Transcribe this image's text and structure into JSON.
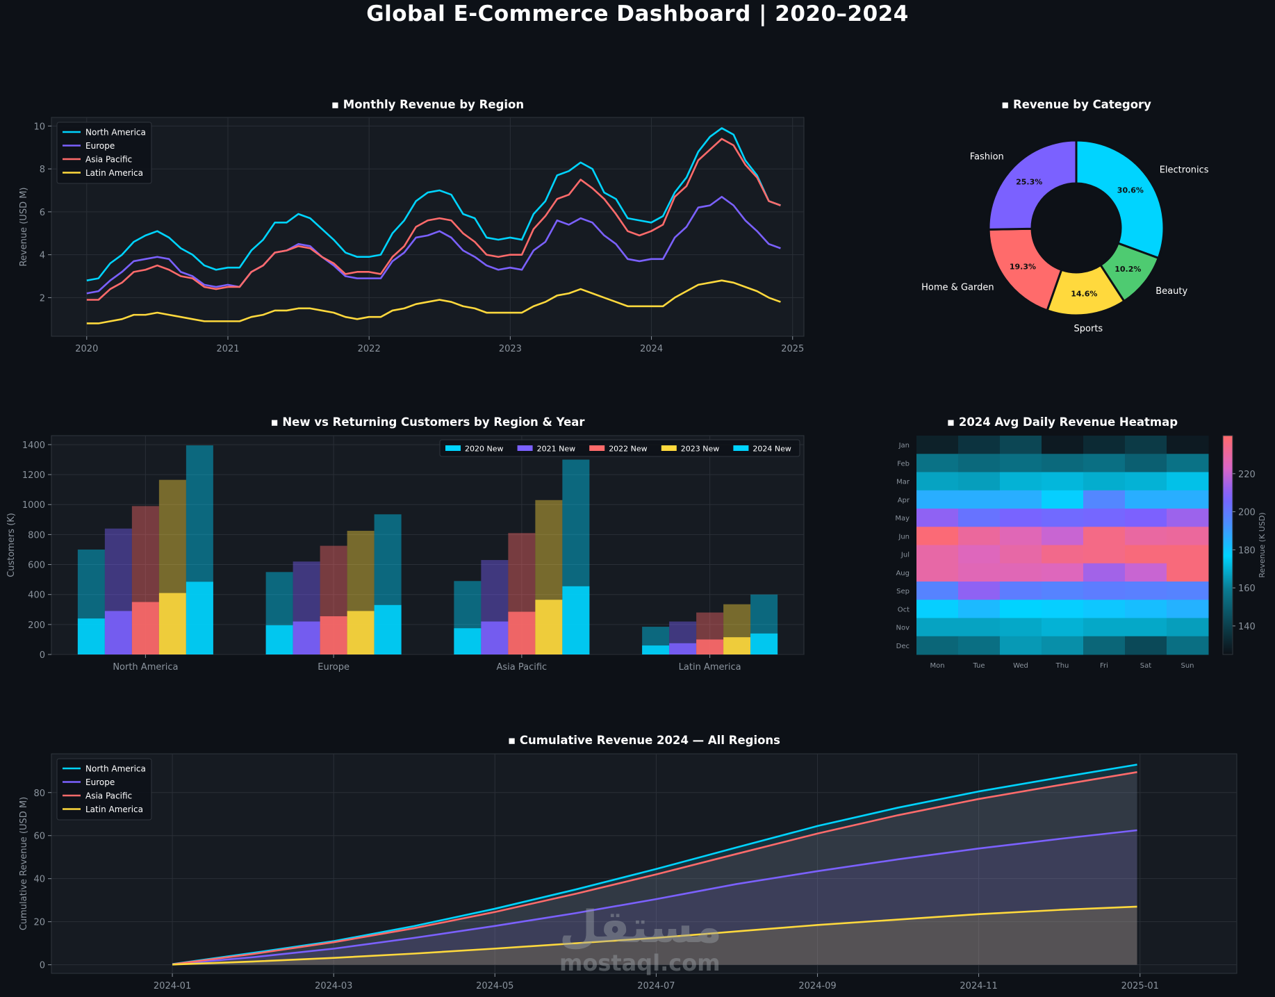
{
  "page": {
    "title": "Global E-Commerce Dashboard  |  2020–2024"
  },
  "colors": {
    "background": "#0d1117",
    "panel": "#161b22",
    "na": "#00d4ff",
    "eu": "#7b61ff",
    "ap": "#ff6b6b",
    "la": "#ffd93d",
    "green": "#4ecb71",
    "text": "#ffffff",
    "muted": "#8b949e"
  },
  "watermark": {
    "arabic": "مستقل",
    "latin": "mostaql.com"
  },
  "chart_data": [
    {
      "id": "monthly",
      "type": "line",
      "title": "▪ Monthly Revenue by Region",
      "ylabel": "Revenue (USD M)",
      "xlabel": "",
      "xlim": [
        2019.75,
        2025.08
      ],
      "ylim": [
        0.2,
        10.4
      ],
      "xticks": [
        2020,
        2021,
        2022,
        2023,
        2024,
        2025
      ],
      "xtick_labels": [
        "2020",
        "2021",
        "2022",
        "2023",
        "2024",
        "2025"
      ],
      "yticks": [
        2,
        4,
        6,
        8,
        10
      ],
      "ytick_labels": [
        "2",
        "4",
        "6",
        "8",
        "10"
      ],
      "legend": "top-left",
      "grid": true,
      "x_start": 2020,
      "x_step": 0.0833,
      "series": [
        {
          "name": "North America",
          "color": "#00d4ff",
          "values": [
            2.8,
            2.9,
            3.6,
            4.0,
            4.6,
            4.9,
            5.1,
            4.8,
            4.3,
            4.0,
            3.5,
            3.3,
            3.4,
            3.4,
            4.2,
            4.7,
            5.5,
            5.5,
            5.9,
            5.7,
            5.2,
            4.7,
            4.1,
            3.9,
            3.9,
            4.0,
            5.0,
            5.6,
            6.5,
            6.9,
            7.0,
            6.8,
            5.9,
            5.7,
            4.8,
            4.7,
            4.8,
            4.7,
            5.9,
            6.5,
            7.7,
            7.9,
            8.3,
            8.0,
            6.9,
            6.6,
            5.7,
            5.6,
            5.5,
            5.8,
            6.9,
            7.6,
            8.8,
            9.5,
            9.9,
            9.6,
            8.4,
            7.7,
            6.5,
            6.3
          ]
        },
        {
          "name": "Europe",
          "color": "#7b61ff",
          "values": [
            2.2,
            2.3,
            2.8,
            3.2,
            3.7,
            3.8,
            3.9,
            3.8,
            3.2,
            3.0,
            2.6,
            2.5,
            2.6,
            2.5,
            3.2,
            3.5,
            4.1,
            4.2,
            4.5,
            4.4,
            3.9,
            3.5,
            3.0,
            2.9,
            2.9,
            2.9,
            3.7,
            4.1,
            4.8,
            4.9,
            5.1,
            4.8,
            4.2,
            3.9,
            3.5,
            3.3,
            3.4,
            3.3,
            4.2,
            4.6,
            5.6,
            5.4,
            5.7,
            5.5,
            4.9,
            4.5,
            3.8,
            3.7,
            3.8,
            3.8,
            4.8,
            5.3,
            6.2,
            6.3,
            6.7,
            6.3,
            5.6,
            5.1,
            4.5,
            4.3
          ]
        },
        {
          "name": "Asia Pacific",
          "color": "#ff6b6b",
          "values": [
            1.9,
            1.9,
            2.4,
            2.7,
            3.2,
            3.3,
            3.5,
            3.3,
            3.0,
            2.9,
            2.5,
            2.4,
            2.5,
            2.5,
            3.2,
            3.5,
            4.1,
            4.2,
            4.4,
            4.3,
            3.9,
            3.6,
            3.1,
            3.2,
            3.2,
            3.1,
            3.9,
            4.4,
            5.3,
            5.6,
            5.7,
            5.6,
            5.0,
            4.6,
            4.0,
            3.9,
            4.0,
            4.0,
            5.2,
            5.8,
            6.6,
            6.8,
            7.5,
            7.1,
            6.6,
            5.9,
            5.1,
            4.9,
            5.1,
            5.4,
            6.7,
            7.2,
            8.4,
            8.9,
            9.4,
            9.1,
            8.2,
            7.6,
            6.5,
            6.3
          ]
        },
        {
          "name": "Latin America",
          "color": "#ffd93d",
          "values": [
            0.8,
            0.8,
            0.9,
            1.0,
            1.2,
            1.2,
            1.3,
            1.2,
            1.1,
            1.0,
            0.9,
            0.9,
            0.9,
            0.9,
            1.1,
            1.2,
            1.4,
            1.4,
            1.5,
            1.5,
            1.4,
            1.3,
            1.1,
            1.0,
            1.1,
            1.1,
            1.4,
            1.5,
            1.7,
            1.8,
            1.9,
            1.8,
            1.6,
            1.5,
            1.3,
            1.3,
            1.3,
            1.3,
            1.6,
            1.8,
            2.1,
            2.2,
            2.4,
            2.2,
            2.0,
            1.8,
            1.6,
            1.6,
            1.6,
            1.6,
            2.0,
            2.3,
            2.6,
            2.7,
            2.8,
            2.7,
            2.5,
            2.3,
            2.0,
            1.8
          ]
        }
      ]
    },
    {
      "id": "category",
      "type": "pie",
      "title": "▪ Revenue by Category",
      "categories": [
        "Electronics",
        "Beauty",
        "Sports",
        "Home & Garden",
        "Fashion"
      ],
      "values": [
        30.6,
        10.2,
        14.6,
        19.3,
        25.3
      ],
      "labels": [
        "30.6%",
        "10.2%",
        "14.6%",
        "19.3%",
        "25.3%"
      ],
      "colors": [
        "#00d4ff",
        "#4ecb71",
        "#ffd93d",
        "#ff6b6b",
        "#7b61ff"
      ]
    },
    {
      "id": "customers",
      "type": "bar",
      "title": "▪ New vs Returning Customers by Region & Year",
      "ylabel": "Customers (K)",
      "xlabel": "",
      "categories": [
        "North America",
        "Europe",
        "Asia Pacific",
        "Latin America"
      ],
      "ylim": [
        0,
        1460
      ],
      "yticks": [
        0,
        200,
        400,
        600,
        800,
        1000,
        1200,
        1400
      ],
      "ytick_labels": [
        "0",
        "200",
        "400",
        "600",
        "800",
        "1000",
        "1200",
        "1400"
      ],
      "legend": "top-right",
      "grid": true,
      "series": [
        {
          "name": "2020 New",
          "color": "#00d4ff",
          "new": [
            240,
            195,
            175,
            60
          ],
          "total": [
            700,
            550,
            490,
            185
          ]
        },
        {
          "name": "2021 New",
          "color": "#7b61ff",
          "new": [
            290,
            220,
            220,
            75
          ],
          "total": [
            840,
            620,
            630,
            220
          ]
        },
        {
          "name": "2022 New",
          "color": "#ff6b6b",
          "new": [
            350,
            255,
            285,
            100
          ],
          "total": [
            990,
            725,
            810,
            280
          ]
        },
        {
          "name": "2023 New",
          "color": "#ffd93d",
          "new": [
            410,
            290,
            365,
            115
          ],
          "total": [
            1165,
            825,
            1030,
            335
          ]
        },
        {
          "name": "2024 New",
          "color": "#00d4ff",
          "new": [
            485,
            330,
            455,
            140
          ],
          "total": [
            1395,
            935,
            1300,
            400
          ]
        }
      ]
    },
    {
      "id": "heatmap",
      "type": "heatmap",
      "title": "▪ 2024 Avg Daily Revenue Heatmap",
      "columns": [
        "Mon",
        "Tue",
        "Wed",
        "Thu",
        "Fri",
        "Sat",
        "Sun"
      ],
      "rows": [
        "Jan",
        "Feb",
        "Mar",
        "Apr",
        "May",
        "Jun",
        "Jul",
        "Aug",
        "Sep",
        "Oct",
        "Nov",
        "Dec"
      ],
      "values": [
        [
          130,
          136,
          142,
          128,
          133,
          138,
          128
        ],
        [
          156,
          153,
          155,
          153,
          155,
          150,
          156
        ],
        [
          167,
          166,
          170,
          171,
          169,
          170,
          173
        ],
        [
          186,
          186,
          186,
          178,
          196,
          186,
          186
        ],
        [
          211,
          202,
          207,
          205,
          206,
          208,
          213
        ],
        [
          238,
          231,
          226,
          220,
          235,
          230,
          231
        ],
        [
          229,
          225,
          229,
          234,
          235,
          237,
          237
        ],
        [
          229,
          226,
          226,
          225,
          214,
          220,
          237
        ],
        [
          197,
          211,
          199,
          197,
          199,
          198,
          197
        ],
        [
          178,
          183,
          177,
          178,
          180,
          182,
          185
        ],
        [
          167,
          167,
          168,
          170,
          168,
          168,
          166
        ],
        [
          152,
          155,
          165,
          163,
          152,
          143,
          155
        ]
      ],
      "vmin": 125,
      "vmax": 240,
      "colorbar_label": "Revenue (K USD)",
      "colorbar_ticks": [
        140,
        160,
        180,
        200,
        220
      ],
      "colorbar_tick_labels": [
        "140",
        "160",
        "180",
        "200",
        "220"
      ]
    },
    {
      "id": "cumulative",
      "type": "area",
      "title": "▪ Cumulative Revenue 2024 — All Regions",
      "ylabel": "Cumulative Revenue (USD M)",
      "xlabel": "",
      "xlim": [
        2023.875,
        2025.1
      ],
      "ylim": [
        -4,
        98
      ],
      "xticks": [
        2024.0,
        2024.1667,
        2024.3333,
        2024.5,
        2024.6667,
        2024.8333,
        2025.0
      ],
      "xtick_labels": [
        "2024-01",
        "2024-03",
        "2024-05",
        "2024-07",
        "2024-09",
        "2024-11",
        "2025-01"
      ],
      "yticks": [
        0,
        20,
        40,
        60,
        80
      ],
      "ytick_labels": [
        "0",
        "20",
        "40",
        "60",
        "80"
      ],
      "legend": "top-left",
      "grid": true,
      "x": [
        2024.0,
        2024.083,
        2024.167,
        2024.25,
        2024.333,
        2024.417,
        2024.5,
        2024.583,
        2024.667,
        2024.75,
        2024.833,
        2024.917,
        2024.997
      ],
      "series": [
        {
          "name": "North America",
          "color": "#00d4ff",
          "values": [
            0.3,
            5.5,
            11,
            18,
            26,
            35,
            44.5,
            54.5,
            64.5,
            73,
            80.5,
            87,
            93
          ]
        },
        {
          "name": "Europe",
          "color": "#7b61ff",
          "values": [
            0.2,
            3.5,
            7.5,
            12.5,
            18,
            24,
            30.5,
            37.5,
            43.5,
            49,
            54,
            58.5,
            62.5
          ]
        },
        {
          "name": "Asia Pacific",
          "color": "#ff6b6b",
          "values": [
            0.2,
            5,
            10.5,
            17,
            24.5,
            33,
            42,
            51.5,
            61,
            69.5,
            77,
            83.5,
            89.5
          ]
        },
        {
          "name": "Latin America",
          "color": "#ffd93d",
          "values": [
            0.1,
            1.5,
            3.2,
            5.2,
            7.5,
            10,
            12.5,
            15.5,
            18.5,
            21,
            23.5,
            25.5,
            27
          ]
        }
      ]
    }
  ]
}
